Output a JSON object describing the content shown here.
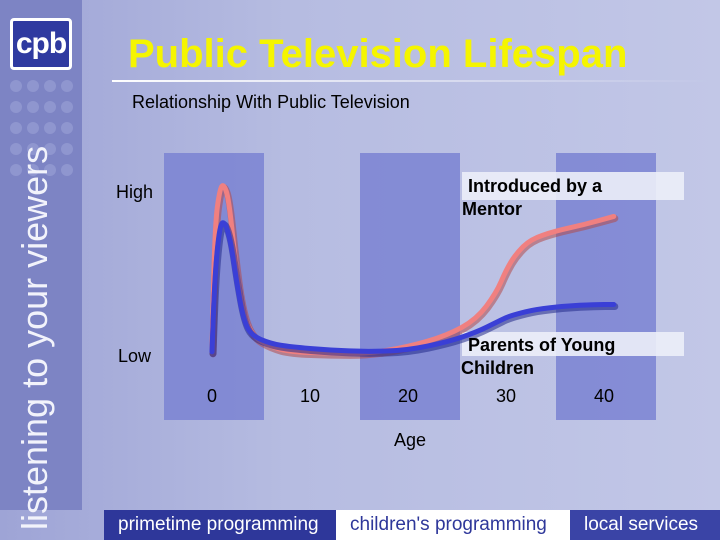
{
  "brand": {
    "logo_text": "cpb",
    "tagline": "listening to your viewers"
  },
  "title": "Public Television Lifespan",
  "subtitle": "Relationship With Public Television",
  "footer": {
    "items": [
      "primetime programming",
      "children's programming",
      "local services"
    ]
  },
  "chart_data": {
    "type": "line",
    "ylabel_high": "High",
    "ylabel_low": "Low",
    "xlabel": "Age",
    "xlim": [
      0,
      40
    ],
    "ylim": [
      0,
      1
    ],
    "x_ticks": [
      0,
      10,
      20,
      30,
      40
    ],
    "x_tick_labels": [
      "0",
      "10",
      "20",
      "30",
      "40"
    ],
    "colors": {
      "series_upper": "#f08080",
      "series_lower": "#3a3fd6",
      "band": "#7a82d2"
    },
    "series": [
      {
        "annotation": "Introduced by a Mentor",
        "x": [
          0,
          0.3,
          0.8,
          1.2,
          1.7,
          2.3,
          3,
          4,
          6,
          8,
          12,
          16,
          20,
          24,
          27,
          29,
          30,
          31,
          32.5,
          35,
          38,
          41
        ],
        "y": [
          0.02,
          0.8,
          1.02,
          1.05,
          0.96,
          0.62,
          0.3,
          0.12,
          0.05,
          0.02,
          0.01,
          0.01,
          0.05,
          0.12,
          0.22,
          0.38,
          0.52,
          0.62,
          0.71,
          0.76,
          0.8,
          0.85
        ]
      },
      {
        "annotation": "Parents of Young Children",
        "x": [
          0,
          0.3,
          0.8,
          1.3,
          1.9,
          2.5,
          3.2,
          4,
          6,
          8,
          12,
          16,
          20,
          24,
          27,
          29,
          30,
          31,
          33,
          36,
          39,
          41
        ],
        "y": [
          0.02,
          0.5,
          0.8,
          0.82,
          0.7,
          0.45,
          0.22,
          0.12,
          0.07,
          0.05,
          0.03,
          0.02,
          0.03,
          0.08,
          0.14,
          0.2,
          0.23,
          0.25,
          0.28,
          0.3,
          0.31,
          0.31
        ]
      }
    ]
  }
}
